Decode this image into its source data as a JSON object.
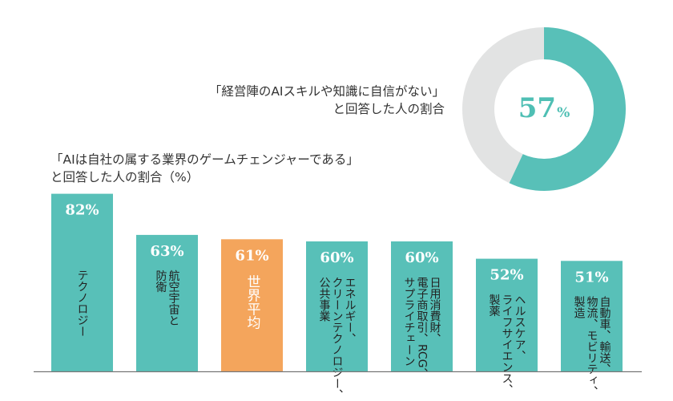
{
  "colors": {
    "teal": "#58c0b8",
    "orange": "#f4a55c",
    "donut_rest": "#e2e3e3",
    "axis": "#777777",
    "value_text": "#ffffff",
    "bar_label_text": "#222222"
  },
  "donut": {
    "caption_line1": "「経営陣のAIスキルや知識に自信がない」",
    "caption_line2": "と回答した人の割合",
    "value_number": "57",
    "value_unit": "%"
  },
  "bars": {
    "caption_line1": "「AIは自社の属する業界のゲームチェンジャーである」",
    "caption_line2": "と回答した人の割合（%）"
  },
  "chart_data": [
    {
      "type": "pie",
      "slices": [
        {
          "label": "57%",
          "value": 57
        },
        {
          "value": 43
        }
      ]
    },
    {
      "type": "bar",
      "categories": [
        "テクノロジー",
        "航空宇宙と防衛",
        "世界平均",
        "エネルギー、クリーンテクノロジー、公共事業",
        "日用消費財、電子商取引、RCG、サプライチェーン",
        "ヘルスケア、ライフサイエンス、製薬",
        "自動車、輸送、物流、モビリティ、製造"
      ],
      "category_lines": [
        [
          "テクノロジー"
        ],
        [
          "航空宇宙と",
          "防衛"
        ],
        [
          "世界平均"
        ],
        [
          "エネルギー、",
          "クリーンテクノロジー、",
          "公共事業"
        ],
        [
          "日用消費財、",
          "電子商取引、RCG、",
          "サプライチェーン"
        ],
        [
          "ヘルスケア、",
          "ライフサイエンス、",
          "製薬"
        ],
        [
          "自動車、輸送、",
          "物流、モビリティ、",
          "製造"
        ]
      ],
      "values": [
        82,
        63,
        61,
        60,
        60,
        52,
        51
      ],
      "labels": [
        "82%",
        "63%",
        "61%",
        "60%",
        "60%",
        "52%",
        "51%"
      ],
      "highlight_index": 2,
      "ylim": [
        0,
        100
      ]
    }
  ]
}
